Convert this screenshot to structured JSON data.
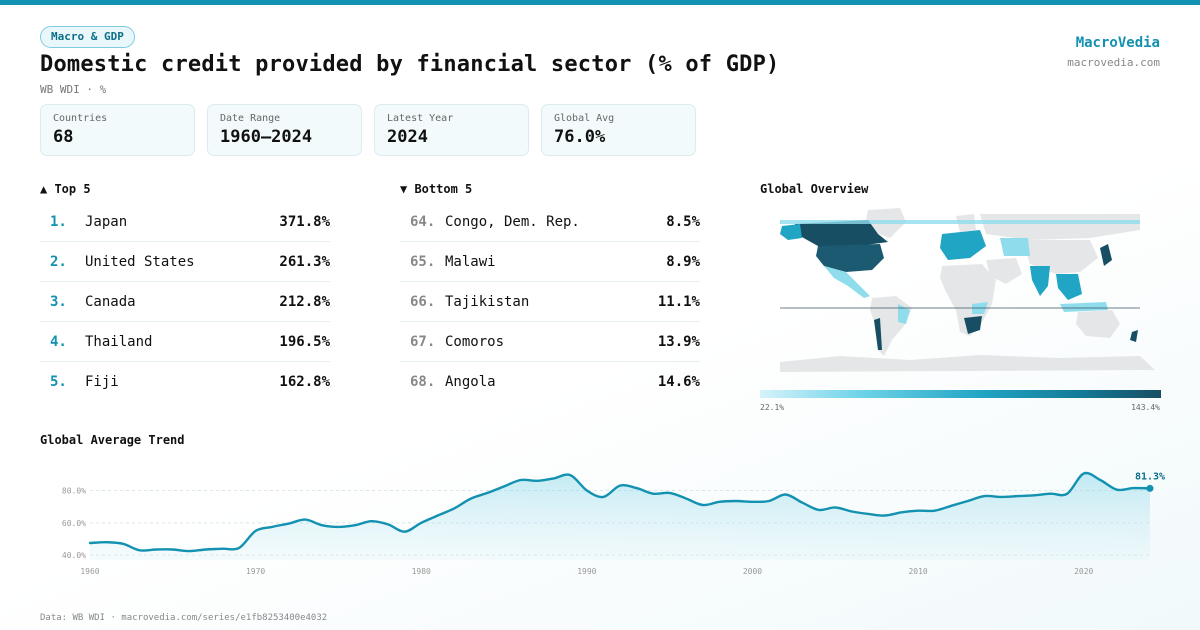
{
  "tag": "Macro & GDP",
  "title": "Domestic credit provided by financial sector (% of GDP)",
  "subtitle": "WB WDI · %",
  "brand": {
    "name": "MacroVedia",
    "url": "macrovedia.com"
  },
  "stats": [
    {
      "label": "Countries",
      "value": "68"
    },
    {
      "label": "Date Range",
      "value": "1960–2024"
    },
    {
      "label": "Latest Year",
      "value": "2024"
    },
    {
      "label": "Global Avg",
      "value": "76.0%"
    }
  ],
  "top5": {
    "heading": "▲ Top 5",
    "items": [
      {
        "rank": "1.",
        "name": "Japan",
        "value": "371.8%"
      },
      {
        "rank": "2.",
        "name": "United States",
        "value": "261.3%"
      },
      {
        "rank": "3.",
        "name": "Canada",
        "value": "212.8%"
      },
      {
        "rank": "4.",
        "name": "Thailand",
        "value": "196.5%"
      },
      {
        "rank": "5.",
        "name": "Fiji",
        "value": "162.8%"
      }
    ]
  },
  "bottom5": {
    "heading": "▼ Bottom 5",
    "items": [
      {
        "rank": "64.",
        "name": "Congo, Dem. Rep.",
        "value": "8.5%"
      },
      {
        "rank": "65.",
        "name": "Malawi",
        "value": "8.9%"
      },
      {
        "rank": "66.",
        "name": "Tajikistan",
        "value": "11.1%"
      },
      {
        "rank": "67.",
        "name": "Comoros",
        "value": "13.9%"
      },
      {
        "rank": "68.",
        "name": "Angola",
        "value": "14.6%"
      }
    ]
  },
  "map": {
    "title": "Global Overview",
    "legend_min": "22.1%",
    "legend_max": "143.4%",
    "colors": {
      "low": "#d5f3fa",
      "mid": "#21a5c4",
      "high": "#174e63",
      "nodata": "#e4e6e8"
    }
  },
  "trend_title": "Global Average Trend",
  "footer": "Data: WB WDI · macrovedia.com/series/e1fb8253400e4032",
  "accent_color": "#1291b0",
  "chart_data": {
    "type": "area",
    "title": "Global Average Trend",
    "xlabel": "",
    "ylabel": "",
    "x": [
      1960,
      1961,
      1962,
      1963,
      1964,
      1965,
      1966,
      1967,
      1968,
      1969,
      1970,
      1971,
      1972,
      1973,
      1974,
      1975,
      1976,
      1977,
      1978,
      1979,
      1980,
      1981,
      1982,
      1983,
      1984,
      1985,
      1986,
      1987,
      1988,
      1989,
      1990,
      1991,
      1992,
      1993,
      1994,
      1995,
      1996,
      1997,
      1998,
      1999,
      2000,
      2001,
      2002,
      2003,
      2004,
      2005,
      2006,
      2007,
      2008,
      2009,
      2010,
      2011,
      2012,
      2013,
      2014,
      2015,
      2016,
      2017,
      2018,
      2019,
      2020,
      2021,
      2022,
      2023,
      2024
    ],
    "values": [
      47.5,
      48.0,
      47.0,
      43.0,
      43.5,
      43.5,
      42.5,
      43.5,
      44.0,
      44.5,
      55.0,
      57.5,
      59.5,
      62.0,
      58.5,
      57.5,
      58.5,
      61.0,
      59.0,
      54.5,
      60.0,
      64.5,
      69.0,
      75.0,
      78.5,
      82.5,
      86.5,
      86.0,
      87.5,
      89.5,
      80.0,
      76.0,
      83.0,
      81.5,
      78.0,
      78.5,
      75.0,
      71.0,
      73.0,
      73.5,
      73.0,
      73.5,
      77.5,
      72.5,
      68.0,
      69.5,
      67.0,
      65.5,
      64.5,
      66.5,
      67.5,
      67.5,
      70.5,
      73.5,
      76.5,
      76.0,
      76.5,
      77.0,
      78.0,
      78.0,
      90.5,
      86.5,
      80.5,
      81.5,
      81.3
    ],
    "yticks": [
      40,
      60,
      80
    ],
    "ytick_labels": [
      "40.0%",
      "60.0%",
      "80.0%"
    ],
    "xticks": [
      1960,
      1970,
      1980,
      1990,
      2000,
      2010,
      2020
    ],
    "xtick_labels": [
      "1960",
      "1970",
      "1980",
      "1990",
      "2000",
      "2010",
      "2020"
    ],
    "ylim": [
      37,
      97
    ],
    "xlim": [
      1960,
      2024
    ],
    "last_label": "81.3%",
    "grid": true
  }
}
